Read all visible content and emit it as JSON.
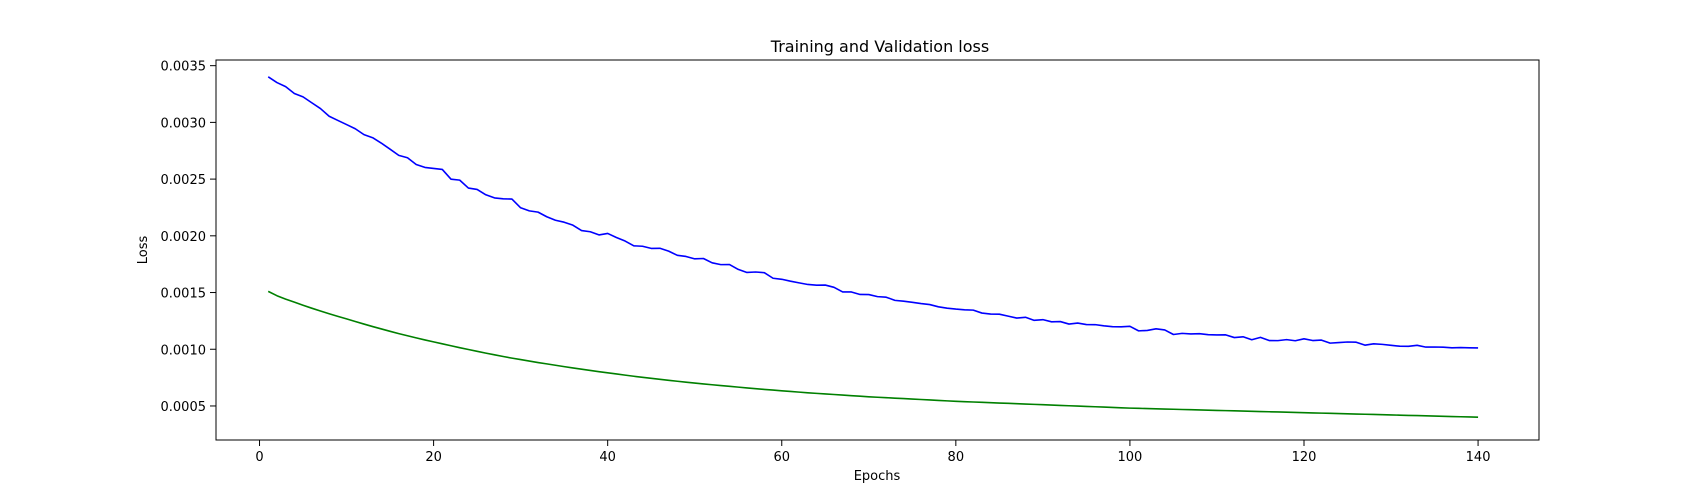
{
  "chart_data": {
    "type": "line",
    "title": "Training and Validation loss",
    "xlabel": "Epochs",
    "ylabel": "Loss",
    "xlim": [
      -5,
      147
    ],
    "ylim": [
      0.0002,
      0.00355
    ],
    "xticks": [
      0,
      20,
      40,
      60,
      80,
      100,
      120,
      140
    ],
    "xtick_labels": [
      "0",
      "20",
      "40",
      "60",
      "80",
      "100",
      "120",
      "140"
    ],
    "yticks": [
      0.0005,
      0.001,
      0.0015,
      0.002,
      0.0025,
      0.003,
      0.0035
    ],
    "ytick_labels": [
      "0.0005",
      "0.0010",
      "0.0015",
      "0.0020",
      "0.0025",
      "0.0030",
      "0.0035"
    ],
    "grid": false,
    "x": [
      1,
      2,
      3,
      4,
      5,
      6,
      7,
      8,
      9,
      10,
      11,
      12,
      13,
      14,
      15,
      16,
      17,
      18,
      19,
      20,
      21,
      22,
      23,
      24,
      25,
      26,
      27,
      28,
      29,
      30,
      31,
      32,
      33,
      34,
      35,
      36,
      37,
      38,
      39,
      40,
      41,
      42,
      43,
      44,
      45,
      46,
      47,
      48,
      49,
      50,
      51,
      52,
      53,
      54,
      55,
      56,
      57,
      58,
      59,
      60,
      61,
      62,
      63,
      64,
      65,
      66,
      67,
      68,
      69,
      70,
      71,
      72,
      73,
      74,
      75,
      76,
      77,
      78,
      79,
      80,
      81,
      82,
      83,
      84,
      85,
      86,
      87,
      88,
      89,
      90,
      91,
      92,
      93,
      94,
      95,
      96,
      97,
      98,
      99,
      100,
      101,
      102,
      103,
      104,
      105,
      106,
      107,
      108,
      109,
      110,
      111,
      112,
      113,
      114,
      115,
      116,
      117,
      118,
      119,
      120,
      121,
      122,
      123,
      124,
      125,
      126,
      127,
      128,
      129,
      130,
      131,
      132,
      133,
      134,
      135,
      136,
      137,
      138,
      139,
      140
    ],
    "series": [
      {
        "color": "#0000ff",
        "values": [
          0.003402,
          0.003351,
          0.003315,
          0.003255,
          0.003225,
          0.003173,
          0.003122,
          0.003054,
          0.003017,
          0.002981,
          0.002944,
          0.002892,
          0.002865,
          0.002817,
          0.002764,
          0.002709,
          0.002688,
          0.002629,
          0.002603,
          0.002594,
          0.002585,
          0.002499,
          0.002491,
          0.002421,
          0.002409,
          0.002362,
          0.002334,
          0.002326,
          0.002324,
          0.002247,
          0.00222,
          0.002209,
          0.002168,
          0.002137,
          0.00212,
          0.002094,
          0.002046,
          0.002036,
          0.002008,
          0.002021,
          0.001985,
          0.001954,
          0.001912,
          0.001908,
          0.001889,
          0.00189,
          0.001865,
          0.001828,
          0.001818,
          0.001797,
          0.0018,
          0.001762,
          0.001746,
          0.001747,
          0.001704,
          0.001677,
          0.001681,
          0.001675,
          0.001626,
          0.001617,
          0.0016,
          0.001585,
          0.001571,
          0.001565,
          0.001566,
          0.001546,
          0.001505,
          0.001505,
          0.001483,
          0.001482,
          0.001464,
          0.001459,
          0.001431,
          0.001424,
          0.001414,
          0.001403,
          0.001394,
          0.001374,
          0.001362,
          0.001354,
          0.001348,
          0.001345,
          0.001319,
          0.00131,
          0.001309,
          0.001292,
          0.001275,
          0.001282,
          0.001255,
          0.001261,
          0.001242,
          0.001244,
          0.001222,
          0.001231,
          0.001218,
          0.001217,
          0.001207,
          0.001199,
          0.001198,
          0.001202,
          0.001162,
          0.001166,
          0.00118,
          0.00117,
          0.00113,
          0.00114,
          0.001135,
          0.001137,
          0.001128,
          0.001126,
          0.001127,
          0.001103,
          0.00111,
          0.001084,
          0.001105,
          0.001077,
          0.001076,
          0.001085,
          0.001075,
          0.001092,
          0.001077,
          0.001081,
          0.001054,
          0.001059,
          0.001064,
          0.001062,
          0.001036,
          0.001048,
          0.001043,
          0.001035,
          0.001027,
          0.001026,
          0.001035,
          0.001019,
          0.00102,
          0.001018,
          0.001013,
          0.001015,
          0.001013,
          0.001012
        ]
      },
      {
        "color": "#008000",
        "values": [
          0.00151,
          0.001472,
          0.001442,
          0.001415,
          0.001388,
          0.001362,
          0.001337,
          0.001313,
          0.00129,
          0.001268,
          0.001245,
          0.001222,
          0.0012,
          0.001179,
          0.001158,
          0.001138,
          0.001119,
          0.0011,
          0.001082,
          0.001065,
          0.001048,
          0.001031,
          0.001014,
          0.000998,
          0.000982,
          0.000966,
          0.000951,
          0.000936,
          0.000922,
          0.000909,
          0.000896,
          0.000883,
          0.000871,
          0.000859,
          0.000847,
          0.000835,
          0.000824,
          0.000813,
          0.000802,
          0.000792,
          0.000782,
          0.000772,
          0.000762,
          0.000753,
          0.000744,
          0.000735,
          0.000726,
          0.000718,
          0.00071,
          0.000702,
          0.000694,
          0.000687,
          0.00068,
          0.000673,
          0.000666,
          0.000659,
          0.000652,
          0.000646,
          0.00064,
          0.000634,
          0.000628,
          0.000622,
          0.000616,
          0.000611,
          0.000606,
          0.000601,
          0.000596,
          0.000591,
          0.000586,
          0.000581,
          0.000577,
          0.000573,
          0.000569,
          0.000565,
          0.000561,
          0.000557,
          0.000553,
          0.000549,
          0.000545,
          0.000541,
          0.000538,
          0.000535,
          0.000532,
          0.000529,
          0.000526,
          0.000523,
          0.00052,
          0.000517,
          0.000514,
          0.000511,
          0.000508,
          0.000505,
          0.000502,
          0.000499,
          0.000496,
          0.000493,
          0.00049,
          0.000487,
          0.000484,
          0.000481,
          0.000479,
          0.000477,
          0.000475,
          0.000473,
          0.000471,
          0.000469,
          0.000467,
          0.000465,
          0.000463,
          0.000461,
          0.000459,
          0.000457,
          0.000455,
          0.000453,
          0.000451,
          0.000449,
          0.000447,
          0.000445,
          0.000443,
          0.000441,
          0.000439,
          0.000437,
          0.000435,
          0.000433,
          0.000431,
          0.000429,
          0.000427,
          0.000425,
          0.000423,
          0.000421,
          0.000419,
          0.000417,
          0.000415,
          0.000413,
          0.000411,
          0.000409,
          0.000407,
          0.000405,
          0.000403,
          0.000401
        ]
      }
    ]
  }
}
